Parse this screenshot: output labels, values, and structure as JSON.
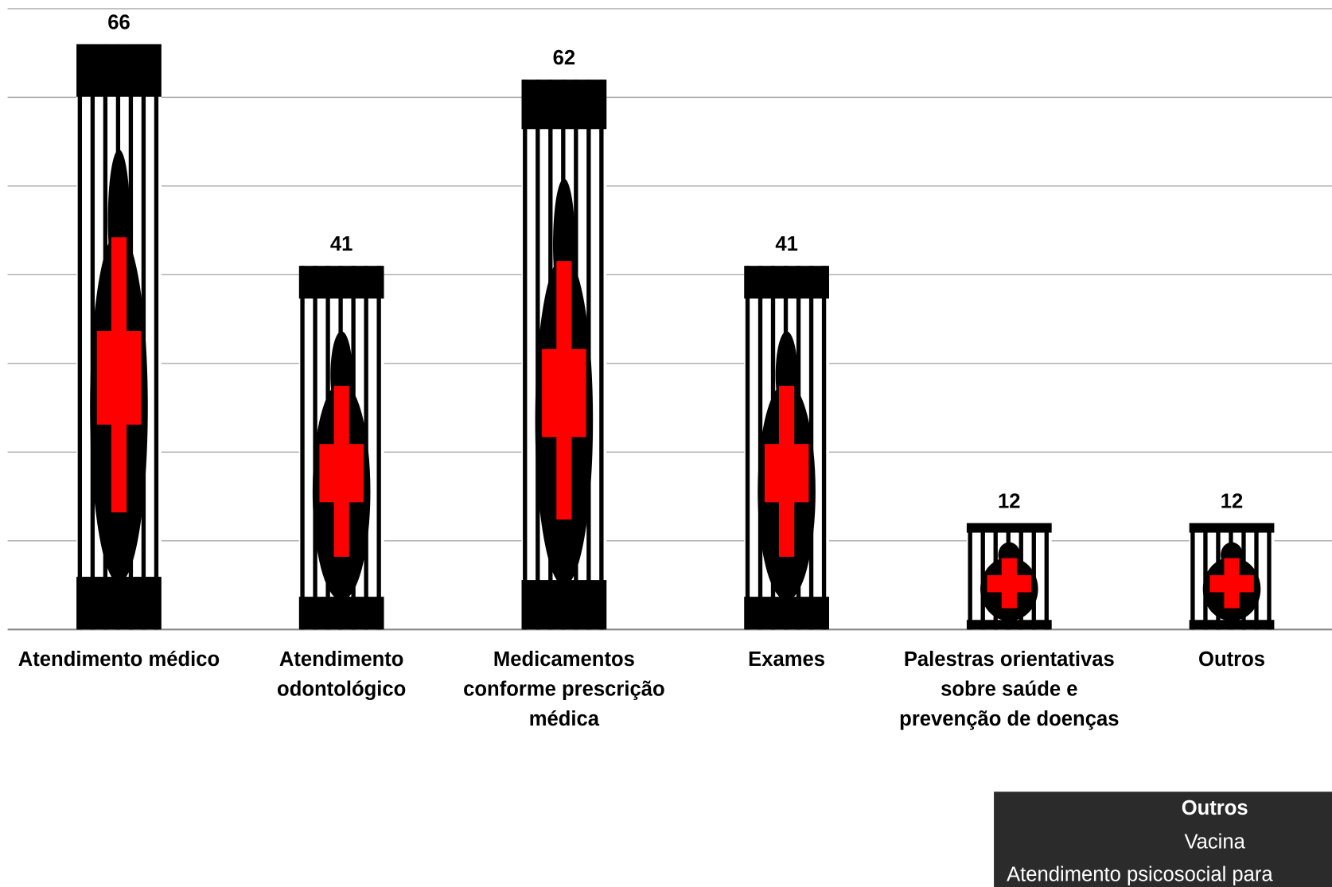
{
  "chart_data": {
    "type": "pictogram-bar",
    "categories": [
      "Atendimento médico",
      "Atendimento odontológico",
      "Medicamentos conforme prescrição médica",
      "Exames",
      "Palestras orientativas sobre saúde e prevenção de doenças",
      "Outros"
    ],
    "values": [
      66,
      41,
      62,
      41,
      12,
      12
    ],
    "color": "#000000",
    "accent_color": "#ff0000",
    "ylim": [
      0,
      70
    ],
    "yticks": [
      0,
      10,
      20,
      30,
      40,
      50,
      60,
      70
    ],
    "grid": true,
    "tooltip": {
      "title": "Outros",
      "lines": [
        "Vacina",
        "Atendimento psicosocial para"
      ]
    }
  }
}
